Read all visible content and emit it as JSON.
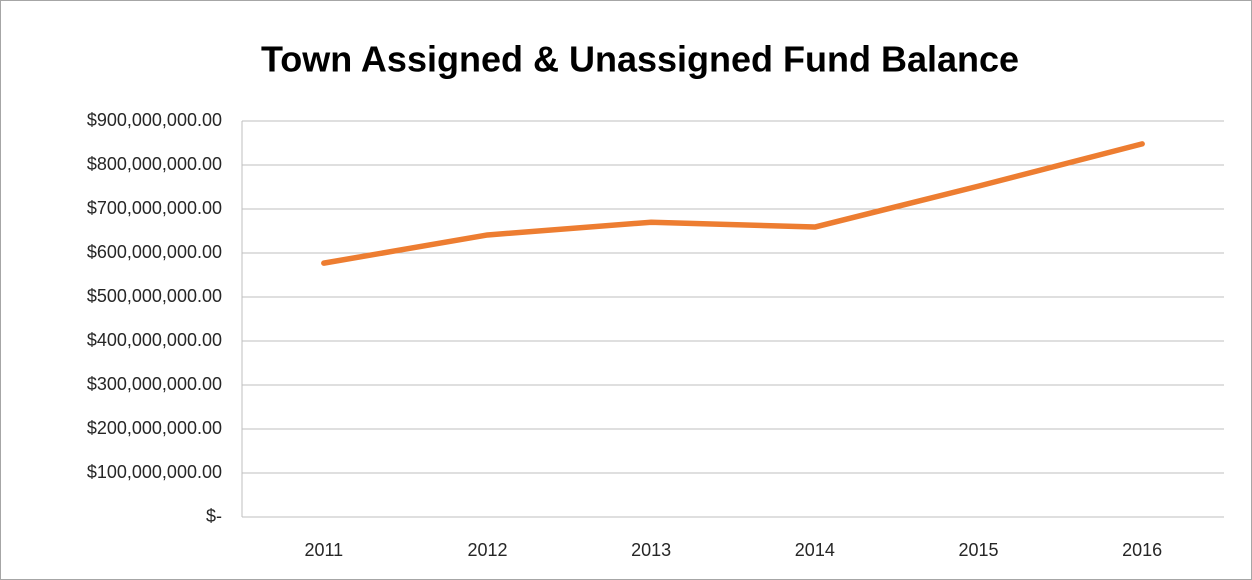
{
  "chart_data": {
    "type": "line",
    "title": "Town Assigned & Unassigned Fund Balance",
    "categories": [
      "2011",
      "2012",
      "2013",
      "2014",
      "2015",
      "2016"
    ],
    "values": [
      577000000,
      641000000,
      670000000,
      659000000,
      752000000,
      848000000
    ],
    "color": "#ed7d31",
    "ylim": [
      0,
      900000000
    ],
    "yticks": [
      {
        "value": 0,
        "label": "$-"
      },
      {
        "value": 100000000,
        "label": "$100,000,000.00"
      },
      {
        "value": 200000000,
        "label": "$200,000,000.00"
      },
      {
        "value": 300000000,
        "label": "$300,000,000.00"
      },
      {
        "value": 400000000,
        "label": "$400,000,000.00"
      },
      {
        "value": 500000000,
        "label": "$500,000,000.00"
      },
      {
        "value": 600000000,
        "label": "$600,000,000.00"
      },
      {
        "value": 700000000,
        "label": "$700,000,000.00"
      },
      {
        "value": 800000000,
        "label": "$800,000,000.00"
      },
      {
        "value": 900000000,
        "label": "$900,000,000.00"
      }
    ],
    "grid": true
  }
}
